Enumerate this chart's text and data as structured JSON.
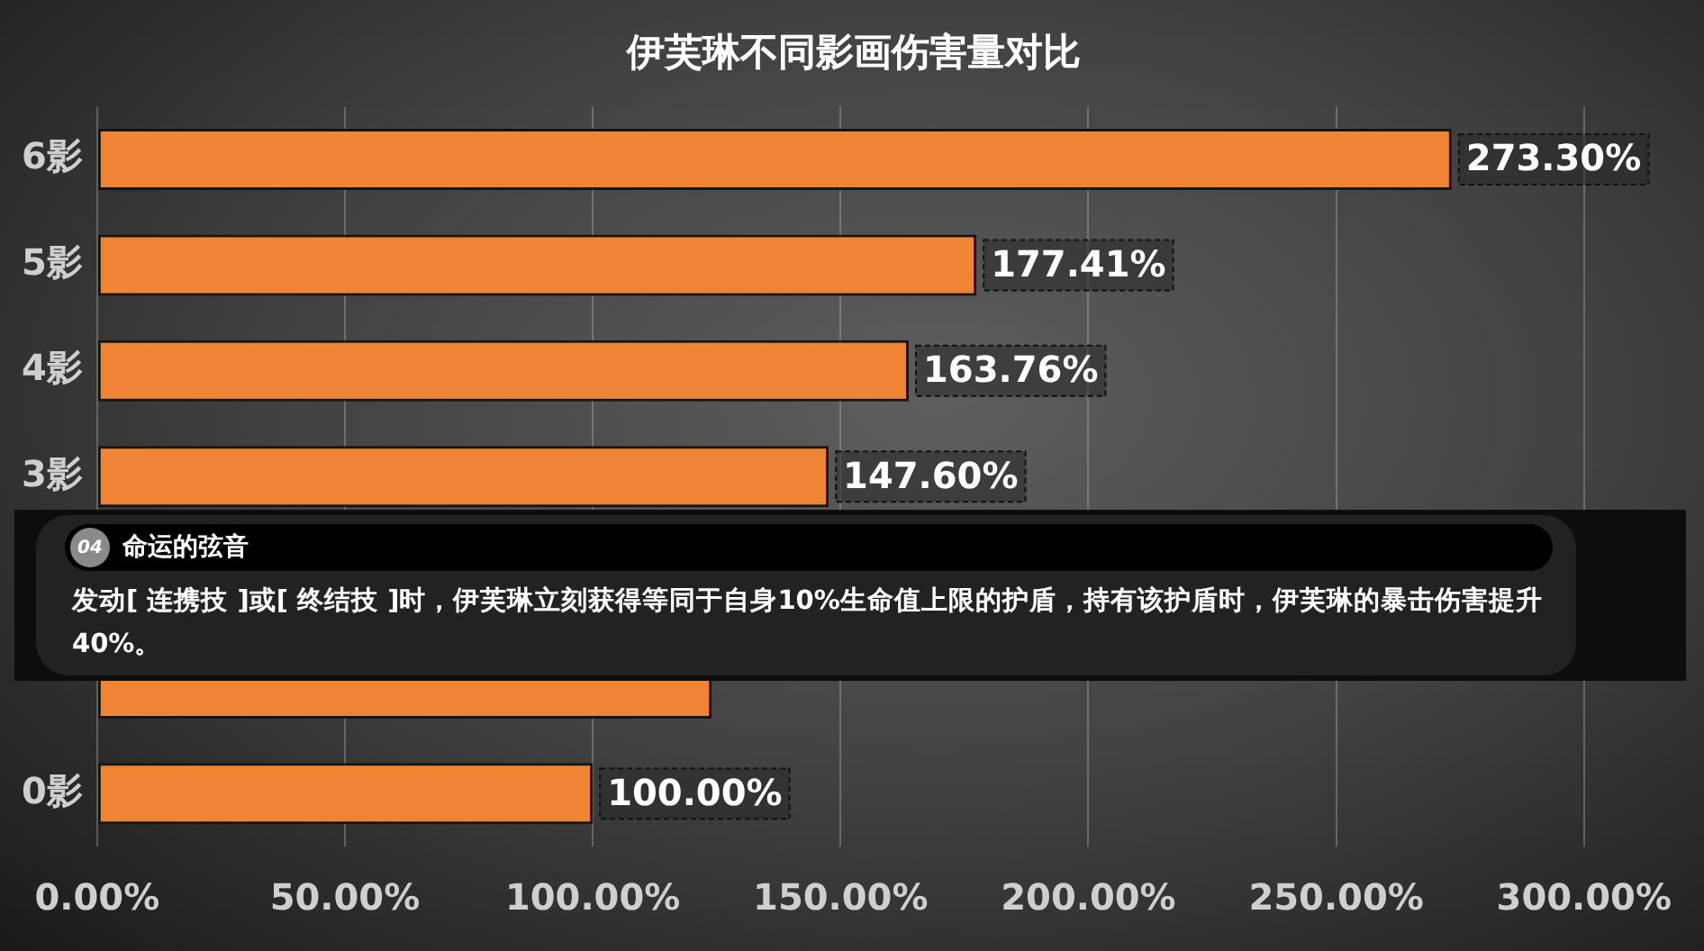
{
  "chart_data": {
    "type": "bar",
    "orientation": "horizontal",
    "title": "伊芙琳不同影画伤害量对比",
    "categories": [
      "6影",
      "5影",
      "4影",
      "3影",
      null,
      null,
      "0影"
    ],
    "values": [
      273.3,
      177.41,
      163.76,
      147.6,
      null,
      124,
      100
    ],
    "value_labels": [
      "273.30%",
      "177.41%",
      "163.76%",
      "147.60%",
      null,
      null,
      "100.00%"
    ],
    "color": "#ee8434",
    "xlim": [
      0,
      300
    ],
    "xticks": [
      {
        "value": 0,
        "label": "0.00%"
      },
      {
        "value": 50,
        "label": "50.00%"
      },
      {
        "value": 100,
        "label": "100.00%"
      },
      {
        "value": 150,
        "label": "150.00%"
      },
      {
        "value": 200,
        "label": "200.00%"
      },
      {
        "value": 250,
        "label": "250.00%"
      },
      {
        "value": 300,
        "label": "300.00%"
      }
    ],
    "grid": "x",
    "annotations": [
      "04",
      "命运的弦音",
      "发动[ 连携技 ]或[ 终结技 ]时，伊芙琳立刻获得等同于自身10%生命值上限的护盾，持有该护盾时，伊芙琳的暴击伤害提升40%。"
    ]
  }
}
